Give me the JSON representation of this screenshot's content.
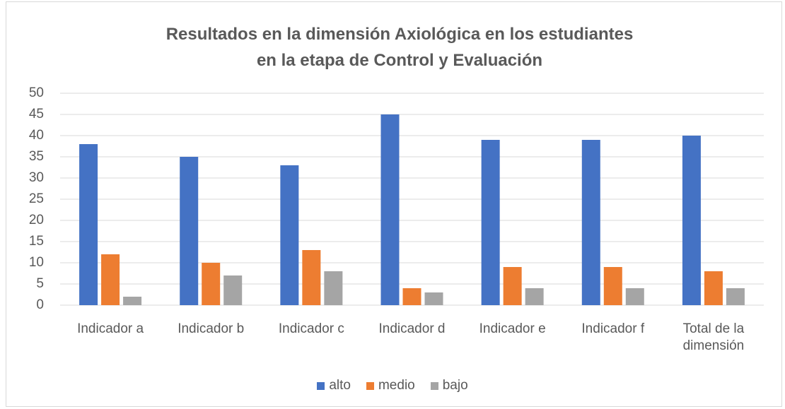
{
  "chart_data": {
    "type": "bar",
    "title": "Resultados en la dimensión Axiológica en los estudiantes en la etapa de Control y Evaluación",
    "categories": [
      "Indicador a",
      "Indicador b",
      "Indicador c",
      "Indicador d",
      "Indicador e",
      "Indicador f",
      "Total de la dimensión"
    ],
    "series": [
      {
        "name": "alto",
        "color": "#4472c4",
        "values": [
          38,
          35,
          33,
          45,
          39,
          39,
          40
        ]
      },
      {
        "name": "medio",
        "color": "#ed7d31",
        "values": [
          12,
          10,
          13,
          4,
          9,
          9,
          8
        ]
      },
      {
        "name": "bajo",
        "color": "#a5a5a5",
        "values": [
          2,
          7,
          8,
          3,
          4,
          4,
          4
        ]
      }
    ],
    "ylim": [
      0,
      50
    ],
    "yticks": [
      0,
      5,
      10,
      15,
      20,
      25,
      30,
      35,
      40,
      45,
      50
    ],
    "grid": true,
    "legend": "bottom"
  }
}
